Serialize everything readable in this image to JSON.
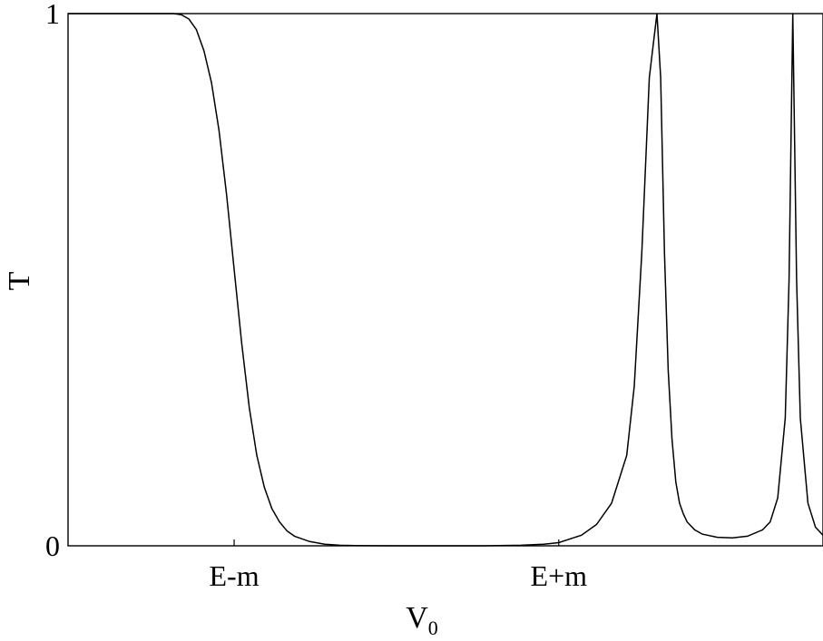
{
  "chart_data": {
    "type": "line",
    "title": "",
    "xlabel": "V",
    "xlabel_sub": "0",
    "ylabel": "T",
    "xlim": [
      0,
      10
    ],
    "ylim": [
      0,
      1
    ],
    "grid": false,
    "x_ticks": [
      {
        "value": 2.2,
        "label": "E-m"
      },
      {
        "value": 6.5,
        "label": "E+m"
      }
    ],
    "y_ticks": [
      {
        "value": 0,
        "label": "0"
      },
      {
        "value": 1,
        "label": "1"
      }
    ],
    "series": [
      {
        "x": [
          0.0,
          0.5,
          1.0,
          1.4,
          1.5,
          1.6,
          1.7,
          1.8,
          1.9,
          2.0,
          2.1,
          2.2,
          2.3,
          2.4,
          2.5,
          2.6,
          2.7,
          2.8,
          2.9,
          3.0,
          3.2,
          3.4,
          3.6,
          3.8,
          4.0,
          4.5,
          5.0,
          5.5,
          6.0,
          6.3,
          6.5,
          6.8,
          7.0,
          7.2,
          7.4,
          7.5,
          7.6,
          7.7,
          7.8,
          7.85,
          7.9,
          7.95,
          8.0,
          8.05,
          8.1,
          8.15,
          8.2,
          8.3,
          8.4,
          8.6,
          8.8,
          9.0,
          9.2,
          9.3,
          9.4,
          9.5,
          9.55,
          9.6,
          9.65,
          9.7,
          9.8,
          9.9,
          10.0
        ],
        "y": [
          1.0,
          1.0,
          1.0,
          1.0,
          0.998,
          0.99,
          0.97,
          0.93,
          0.87,
          0.78,
          0.66,
          0.52,
          0.38,
          0.26,
          0.17,
          0.11,
          0.07,
          0.045,
          0.028,
          0.018,
          0.008,
          0.003,
          0.001,
          0.0003,
          0.0001,
          0.0,
          0.0,
          0.0,
          0.001,
          0.003,
          0.006,
          0.02,
          0.04,
          0.08,
          0.17,
          0.3,
          0.55,
          0.88,
          1.0,
          0.88,
          0.55,
          0.33,
          0.2,
          0.12,
          0.08,
          0.06,
          0.045,
          0.03,
          0.022,
          0.016,
          0.015,
          0.018,
          0.03,
          0.045,
          0.09,
          0.24,
          0.5,
          1.0,
          0.5,
          0.24,
          0.08,
          0.035,
          0.02
        ]
      }
    ]
  }
}
